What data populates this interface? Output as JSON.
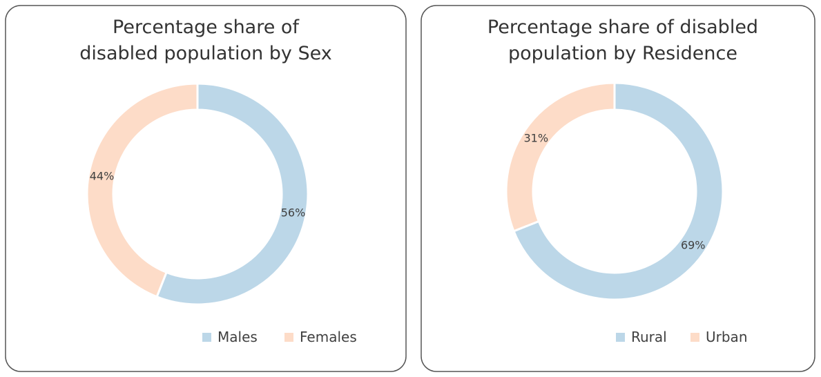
{
  "chart_data": [
    {
      "type": "donut",
      "title": [
        "Percentage share of",
        "disabled population by Sex"
      ],
      "categories": [
        "Males",
        "Females"
      ],
      "values": [
        56,
        44
      ],
      "value_labels": [
        "56%",
        "44%"
      ],
      "colors": [
        "#bcd7e8",
        "#fddcc8"
      ]
    },
    {
      "type": "donut",
      "title": [
        "Percentage share of disabled",
        "population by Residence"
      ],
      "categories": [
        "Rural",
        "Urban"
      ],
      "values": [
        69,
        31
      ],
      "value_labels": [
        "69%",
        "31%"
      ],
      "colors": [
        "#bcd7e8",
        "#fddcc8"
      ]
    }
  ]
}
